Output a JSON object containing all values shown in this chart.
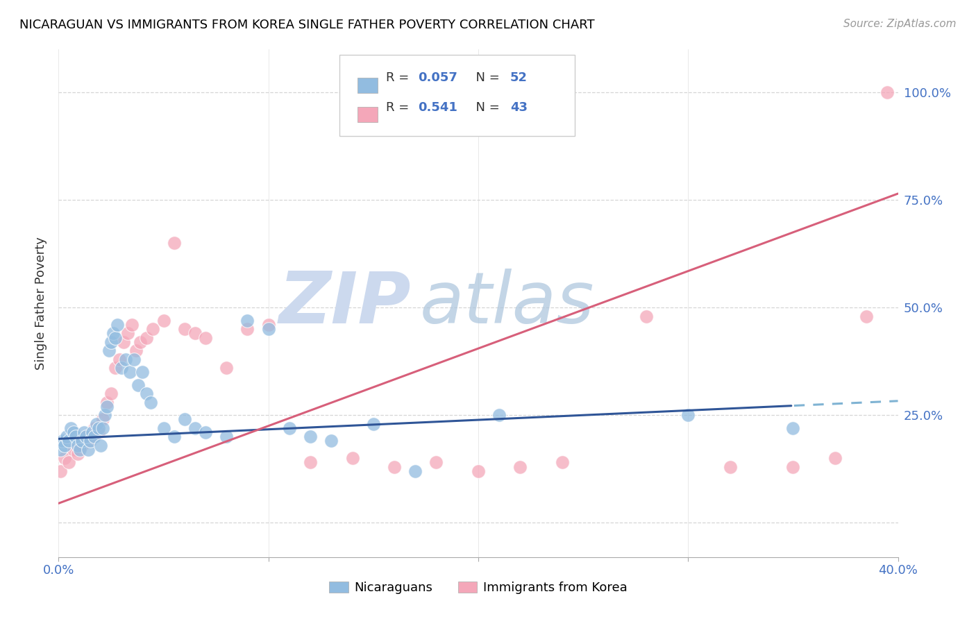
{
  "title": "NICARAGUAN VS IMMIGRANTS FROM KOREA SINGLE FATHER POVERTY CORRELATION CHART",
  "source": "Source: ZipAtlas.com",
  "ylabel": "Single Father Poverty",
  "right_yticks": [
    "100.0%",
    "75.0%",
    "50.0%",
    "25.0%"
  ],
  "right_ytick_vals": [
    1.0,
    0.75,
    0.5,
    0.25
  ],
  "legend_label1": "Nicaraguans",
  "legend_label2": "Immigrants from Korea",
  "color_blue": "#92bce0",
  "color_pink": "#f4a7b9",
  "color_trendline_blue": "#2f5597",
  "color_trendline_pink": "#d75f7a",
  "color_trendline_blue_dash": "#7fb3d3",
  "watermark_zip_color": "#ccd9ee",
  "watermark_atlas_color": "#aac4dc",
  "xmin": 0.0,
  "xmax": 0.4,
  "ymin": -0.08,
  "ymax": 1.1,
  "nic_R": 0.057,
  "nic_N": 52,
  "kor_R": 0.541,
  "kor_N": 43,
  "nicaraguan_x": [
    0.001,
    0.002,
    0.003,
    0.004,
    0.005,
    0.006,
    0.007,
    0.008,
    0.009,
    0.01,
    0.011,
    0.012,
    0.013,
    0.014,
    0.015,
    0.016,
    0.017,
    0.018,
    0.019,
    0.02,
    0.021,
    0.022,
    0.023,
    0.024,
    0.025,
    0.026,
    0.027,
    0.028,
    0.03,
    0.032,
    0.034,
    0.036,
    0.038,
    0.04,
    0.042,
    0.044,
    0.05,
    0.055,
    0.06,
    0.065,
    0.07,
    0.08,
    0.09,
    0.1,
    0.11,
    0.12,
    0.13,
    0.15,
    0.17,
    0.21,
    0.3,
    0.35
  ],
  "nicaraguan_y": [
    0.17,
    0.19,
    0.18,
    0.2,
    0.19,
    0.22,
    0.21,
    0.2,
    0.18,
    0.17,
    0.19,
    0.21,
    0.2,
    0.17,
    0.19,
    0.21,
    0.2,
    0.23,
    0.22,
    0.18,
    0.22,
    0.25,
    0.27,
    0.4,
    0.42,
    0.44,
    0.43,
    0.46,
    0.36,
    0.38,
    0.35,
    0.38,
    0.32,
    0.35,
    0.3,
    0.28,
    0.22,
    0.2,
    0.24,
    0.22,
    0.21,
    0.2,
    0.47,
    0.45,
    0.22,
    0.2,
    0.19,
    0.23,
    0.12,
    0.25,
    0.25,
    0.22
  ],
  "korea_x": [
    0.001,
    0.003,
    0.005,
    0.007,
    0.009,
    0.011,
    0.013,
    0.015,
    0.017,
    0.019,
    0.021,
    0.023,
    0.025,
    0.027,
    0.029,
    0.031,
    0.033,
    0.035,
    0.037,
    0.039,
    0.042,
    0.045,
    0.05,
    0.055,
    0.06,
    0.065,
    0.07,
    0.08,
    0.09,
    0.1,
    0.12,
    0.14,
    0.16,
    0.18,
    0.2,
    0.22,
    0.24,
    0.28,
    0.32,
    0.35,
    0.37,
    0.385,
    0.395
  ],
  "korea_y": [
    0.12,
    0.15,
    0.14,
    0.17,
    0.16,
    0.18,
    0.2,
    0.19,
    0.22,
    0.21,
    0.24,
    0.28,
    0.3,
    0.36,
    0.38,
    0.42,
    0.44,
    0.46,
    0.4,
    0.42,
    0.43,
    0.45,
    0.47,
    0.65,
    0.45,
    0.44,
    0.43,
    0.36,
    0.45,
    0.46,
    0.14,
    0.15,
    0.13,
    0.14,
    0.12,
    0.13,
    0.14,
    0.48,
    0.13,
    0.13,
    0.15,
    0.48,
    1.0
  ]
}
